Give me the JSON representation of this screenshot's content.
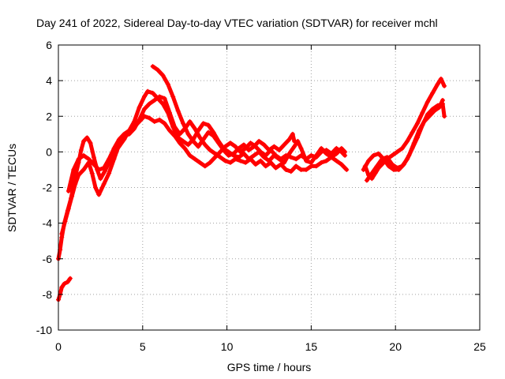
{
  "chart_data": {
    "type": "scatter",
    "title": "Day 241 of 2022, Sidereal Day-to-day VTEC variation (SDTVAR) for receiver mchl",
    "xlabel": "GPS time / hours",
    "ylabel": "SDTVAR / TECUs",
    "xlim": [
      0,
      25
    ],
    "ylim": [
      -10,
      6
    ],
    "xticks": [
      0,
      5,
      10,
      15,
      20,
      25
    ],
    "yticks": [
      -10,
      -8,
      -6,
      -4,
      -2,
      0,
      2,
      4,
      6
    ],
    "grid": true,
    "marker": "+",
    "series": [
      {
        "name": "SDTVAR",
        "color": "#ff0000",
        "segments": [
          [
            [
              0.0,
              -8.3
            ],
            [
              0.1,
              -8.0
            ],
            [
              0.2,
              -7.6
            ],
            [
              0.35,
              -7.4
            ],
            [
              0.55,
              -7.3
            ],
            [
              0.7,
              -7.1
            ]
          ],
          [
            [
              0.0,
              -6.0
            ],
            [
              0.1,
              -5.5
            ],
            [
              0.2,
              -4.8
            ],
            [
              0.35,
              -4.0
            ],
            [
              0.55,
              -3.3
            ],
            [
              0.75,
              -2.6
            ],
            [
              0.9,
              -1.9
            ],
            [
              1.05,
              -1.2
            ],
            [
              1.2,
              -0.6
            ],
            [
              1.35,
              0.1
            ],
            [
              1.5,
              0.6
            ],
            [
              1.7,
              0.8
            ],
            [
              1.9,
              0.5
            ],
            [
              2.1,
              -0.3
            ],
            [
              2.3,
              -1.0
            ],
            [
              2.5,
              -1.5
            ],
            [
              2.75,
              -1.1
            ],
            [
              3.0,
              -0.6
            ],
            [
              3.3,
              -0.1
            ],
            [
              3.6,
              0.3
            ],
            [
              3.9,
              0.7
            ],
            [
              4.2,
              1.2
            ],
            [
              4.5,
              1.7
            ],
            [
              4.8,
              2.5
            ],
            [
              5.1,
              3.1
            ],
            [
              5.3,
              3.4
            ],
            [
              5.6,
              3.3
            ],
            [
              5.9,
              3.0
            ],
            [
              6.2,
              2.7
            ],
            [
              6.5,
              2.2
            ],
            [
              6.8,
              1.4
            ],
            [
              7.1,
              0.8
            ],
            [
              7.4,
              0.6
            ],
            [
              7.7,
              0.4
            ],
            [
              8.0,
              0.7
            ],
            [
              8.3,
              1.2
            ],
            [
              8.6,
              1.6
            ],
            [
              8.9,
              1.5
            ],
            [
              9.2,
              1.1
            ],
            [
              9.5,
              0.6
            ],
            [
              9.8,
              0.2
            ],
            [
              10.1,
              0.0
            ],
            [
              10.4,
              -0.2
            ],
            [
              10.7,
              -0.3
            ],
            [
              11.0,
              -0.1
            ],
            [
              11.3,
              -0.4
            ],
            [
              11.6,
              -0.2
            ],
            [
              11.9,
              0.0
            ],
            [
              12.2,
              -0.3
            ],
            [
              12.5,
              -0.5
            ],
            [
              12.8,
              -0.2
            ],
            [
              13.1,
              -0.4
            ],
            [
              13.4,
              -0.6
            ],
            [
              13.7,
              -0.1
            ],
            [
              14.0,
              0.3
            ],
            [
              14.2,
              0.6
            ],
            [
              14.4,
              0.2
            ],
            [
              14.7,
              -0.5
            ],
            [
              15.0,
              -0.6
            ],
            [
              15.3,
              -0.2
            ],
            [
              15.6,
              0.2
            ],
            [
              15.9,
              -0.1
            ],
            [
              16.2,
              -0.3
            ],
            [
              16.5,
              -0.5
            ],
            [
              16.8,
              -0.7
            ],
            [
              17.1,
              -1.0
            ]
          ],
          [
            [
              0.2,
              -4.6
            ],
            [
              0.4,
              -3.9
            ],
            [
              0.6,
              -3.2
            ],
            [
              0.8,
              -2.5
            ],
            [
              1.0,
              -1.8
            ],
            [
              1.2,
              -1.3
            ],
            [
              1.5,
              -1.0
            ],
            [
              1.8,
              -0.6
            ],
            [
              2.0,
              -1.2
            ],
            [
              2.2,
              -2.0
            ],
            [
              2.4,
              -2.4
            ],
            [
              2.7,
              -1.8
            ],
            [
              3.0,
              -1.2
            ],
            [
              3.3,
              -0.4
            ],
            [
              3.6,
              0.4
            ],
            [
              3.9,
              0.9
            ],
            [
              4.2,
              1.0
            ],
            [
              4.5,
              1.3
            ],
            [
              4.8,
              1.8
            ],
            [
              5.1,
              2.4
            ],
            [
              5.4,
              2.7
            ],
            [
              5.7,
              2.9
            ],
            [
              6.0,
              3.1
            ],
            [
              6.3,
              3.0
            ],
            [
              6.6,
              2.2
            ],
            [
              6.9,
              1.4
            ],
            [
              7.2,
              1.0
            ],
            [
              7.5,
              1.3
            ],
            [
              7.8,
              1.7
            ],
            [
              8.1,
              1.3
            ],
            [
              8.4,
              0.8
            ],
            [
              8.7,
              0.4
            ],
            [
              9.0,
              0.1
            ],
            [
              9.3,
              -0.1
            ],
            [
              9.6,
              -0.3
            ],
            [
              9.9,
              -0.5
            ],
            [
              10.2,
              -0.6
            ],
            [
              10.5,
              -0.4
            ],
            [
              10.8,
              -0.5
            ],
            [
              11.1,
              -0.6
            ],
            [
              11.4,
              -0.4
            ],
            [
              11.7,
              -0.7
            ],
            [
              12.0,
              -0.5
            ],
            [
              12.3,
              -0.8
            ],
            [
              12.6,
              -0.6
            ],
            [
              12.9,
              -0.9
            ],
            [
              13.2,
              -0.7
            ],
            [
              13.5,
              -1.0
            ],
            [
              13.8,
              -1.1
            ],
            [
              14.1,
              -0.8
            ],
            [
              14.4,
              -1.0
            ],
            [
              14.7,
              -1.0
            ],
            [
              15.0,
              -0.8
            ],
            [
              15.3,
              -0.8
            ],
            [
              15.6,
              -0.6
            ],
            [
              15.9,
              -0.5
            ],
            [
              16.2,
              -0.3
            ],
            [
              16.5,
              -0.1
            ],
            [
              16.8,
              0.2
            ],
            [
              17.0,
              0.0
            ]
          ],
          [
            [
              0.6,
              -2.2
            ],
            [
              0.9,
              -1.0
            ],
            [
              1.2,
              -0.4
            ],
            [
              1.5,
              -0.2
            ],
            [
              1.8,
              -0.4
            ],
            [
              2.1,
              -0.7
            ],
            [
              2.4,
              -1.0
            ],
            [
              2.7,
              -0.9
            ],
            [
              3.0,
              -0.4
            ],
            [
              3.3,
              0.2
            ],
            [
              3.6,
              0.7
            ],
            [
              3.9,
              1.0
            ],
            [
              4.2,
              1.2
            ],
            [
              4.5,
              1.4
            ],
            [
              4.8,
              1.7
            ],
            [
              5.1,
              2.0
            ],
            [
              5.4,
              1.9
            ],
            [
              5.7,
              1.7
            ],
            [
              6.0,
              1.8
            ],
            [
              6.3,
              1.6
            ],
            [
              6.6,
              1.2
            ],
            [
              6.9,
              0.9
            ],
            [
              7.2,
              0.5
            ],
            [
              7.5,
              0.2
            ],
            [
              7.8,
              -0.2
            ],
            [
              8.1,
              -0.4
            ],
            [
              8.4,
              -0.6
            ],
            [
              8.7,
              -0.8
            ],
            [
              9.0,
              -0.6
            ],
            [
              9.3,
              -0.3
            ],
            [
              9.6,
              0.0
            ],
            [
              9.9,
              0.3
            ],
            [
              10.2,
              0.5
            ],
            [
              10.5,
              0.3
            ],
            [
              10.8,
              0.0
            ],
            [
              11.1,
              0.2
            ],
            [
              11.4,
              0.5
            ],
            [
              11.7,
              0.3
            ],
            [
              12.0,
              0.0
            ],
            [
              12.3,
              -0.2
            ],
            [
              12.6,
              0.1
            ],
            [
              12.9,
              -0.2
            ],
            [
              13.2,
              -0.4
            ],
            [
              13.5,
              -0.2
            ],
            [
              13.8,
              -0.3
            ],
            [
              14.1,
              -0.4
            ],
            [
              14.4,
              -0.2
            ],
            [
              14.7,
              -0.4
            ],
            [
              15.0,
              -0.2
            ],
            [
              15.3,
              -0.3
            ],
            [
              15.6,
              0.0
            ],
            [
              15.9,
              0.1
            ],
            [
              16.2,
              -0.1
            ],
            [
              16.5,
              0.2
            ],
            [
              16.8,
              0.0
            ],
            [
              17.0,
              -0.2
            ]
          ],
          [
            [
              5.6,
              4.8
            ],
            [
              5.9,
              4.6
            ],
            [
              6.2,
              4.3
            ],
            [
              6.5,
              3.8
            ],
            [
              6.8,
              3.1
            ],
            [
              7.1,
              2.3
            ],
            [
              7.4,
              1.6
            ],
            [
              7.7,
              1.0
            ],
            [
              8.0,
              0.6
            ],
            [
              8.3,
              0.3
            ],
            [
              8.6,
              0.7
            ],
            [
              8.9,
              1.1
            ],
            [
              9.2,
              0.9
            ],
            [
              9.5,
              0.5
            ],
            [
              9.8,
              0.1
            ],
            [
              10.1,
              -0.2
            ],
            [
              10.4,
              -0.1
            ],
            [
              10.7,
              0.2
            ],
            [
              11.0,
              0.4
            ],
            [
              11.3,
              0.1
            ],
            [
              11.6,
              0.3
            ],
            [
              11.9,
              0.6
            ],
            [
              12.2,
              0.4
            ],
            [
              12.5,
              0.1
            ],
            [
              12.8,
              0.3
            ],
            [
              13.1,
              0.1
            ],
            [
              13.4,
              0.4
            ],
            [
              13.7,
              0.7
            ],
            [
              13.9,
              1.0
            ],
            [
              14.0,
              0.6
            ]
          ],
          [
            [
              18.2,
              -0.8
            ],
            [
              18.4,
              -1.3
            ],
            [
              18.6,
              -1.5
            ],
            [
              18.8,
              -1.2
            ],
            [
              19.0,
              -0.9
            ],
            [
              19.2,
              -0.7
            ],
            [
              19.5,
              -0.4
            ],
            [
              19.8,
              -0.2
            ],
            [
              20.1,
              0.0
            ],
            [
              20.4,
              0.2
            ],
            [
              20.7,
              0.6
            ],
            [
              21.0,
              1.1
            ],
            [
              21.3,
              1.6
            ],
            [
              21.6,
              2.2
            ],
            [
              21.9,
              2.8
            ],
            [
              22.2,
              3.3
            ],
            [
              22.5,
              3.8
            ],
            [
              22.7,
              4.1
            ],
            [
              22.9,
              3.7
            ]
          ],
          [
            [
              18.3,
              -1.6
            ],
            [
              18.6,
              -1.2
            ],
            [
              18.9,
              -0.8
            ],
            [
              19.2,
              -0.4
            ],
            [
              19.5,
              -0.3
            ],
            [
              19.8,
              -0.7
            ],
            [
              20.1,
              -0.9
            ],
            [
              20.4,
              -0.8
            ],
            [
              20.7,
              -0.4
            ],
            [
              21.0,
              0.2
            ],
            [
              21.3,
              0.8
            ],
            [
              21.6,
              1.5
            ],
            [
              21.9,
              2.1
            ],
            [
              22.2,
              2.4
            ],
            [
              22.5,
              2.6
            ],
            [
              22.8,
              2.7
            ],
            [
              22.9,
              2.0
            ]
          ],
          [
            [
              18.1,
              -1.0
            ],
            [
              18.4,
              -0.5
            ],
            [
              18.7,
              -0.2
            ],
            [
              19.0,
              -0.1
            ],
            [
              19.3,
              -0.4
            ],
            [
              19.6,
              -0.8
            ],
            [
              19.9,
              -1.0
            ],
            [
              20.2,
              -1.0
            ],
            [
              20.5,
              -0.7
            ],
            [
              20.8,
              -0.2
            ],
            [
              21.1,
              0.5
            ],
            [
              21.4,
              1.2
            ],
            [
              21.7,
              1.7
            ],
            [
              22.0,
              2.0
            ],
            [
              22.3,
              2.3
            ],
            [
              22.6,
              2.5
            ],
            [
              22.8,
              2.9
            ]
          ]
        ]
      }
    ]
  }
}
